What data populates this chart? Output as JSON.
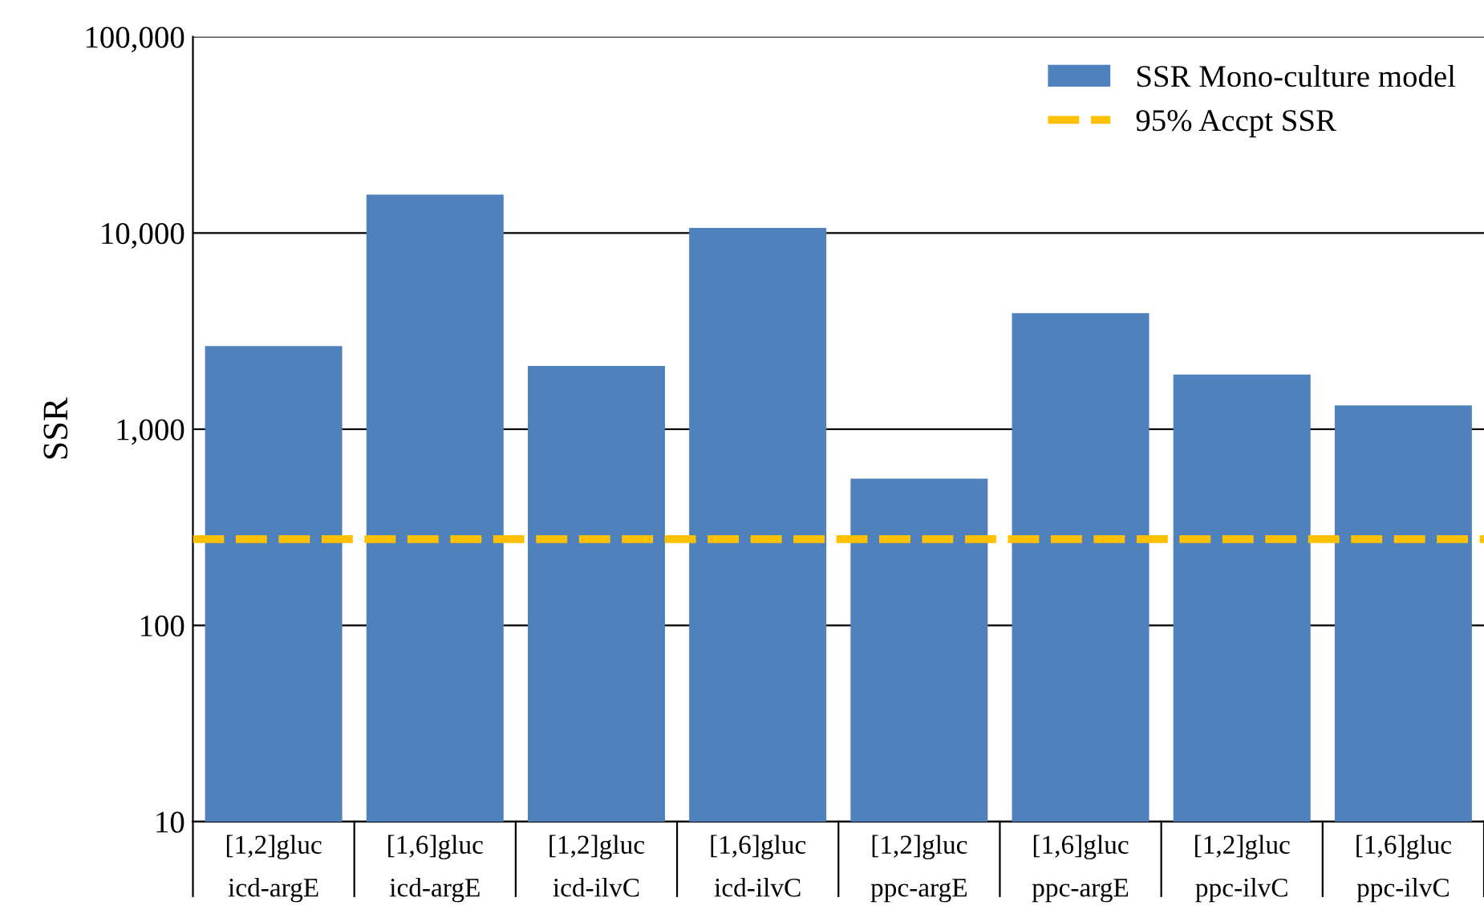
{
  "chart_data": {
    "type": "bar",
    "ylabel": "SSR",
    "categories": [
      "[1,2]gluc\nicd-argE",
      "[1,6]gluc\nicd-argE",
      "[1,2]gluc\nicd-ilvC",
      "[1,6]gluc\nicd-ilvC",
      "[1,2]gluc\nppc-argE",
      "[1,6]gluc\nppc-argE",
      "[1,2]gluc\nppc-ilvC",
      "[1,6]gluc\nppc-ilvC"
    ],
    "series": [
      {
        "name": "SSR Mono-culture model",
        "color": "#4f81bd",
        "values": [
          2650,
          15700,
          2100,
          10600,
          560,
          3900,
          1900,
          1320
        ]
      }
    ],
    "ref_lines": [
      {
        "axis": "y",
        "value": 275,
        "label": "95% Accpt SSR",
        "color": "#ffc000",
        "line_style": "dashed"
      }
    ],
    "log": "y",
    "ylim": [
      10,
      100000
    ],
    "yticks": [
      {
        "value": 10,
        "label": "10"
      },
      {
        "value": 100,
        "label": "100"
      },
      {
        "value": 1000,
        "label": "1,000"
      },
      {
        "value": 10000,
        "label": "10,000"
      },
      {
        "value": 100000,
        "label": "100,000"
      }
    ],
    "grid": "y",
    "legend": "top right"
  }
}
